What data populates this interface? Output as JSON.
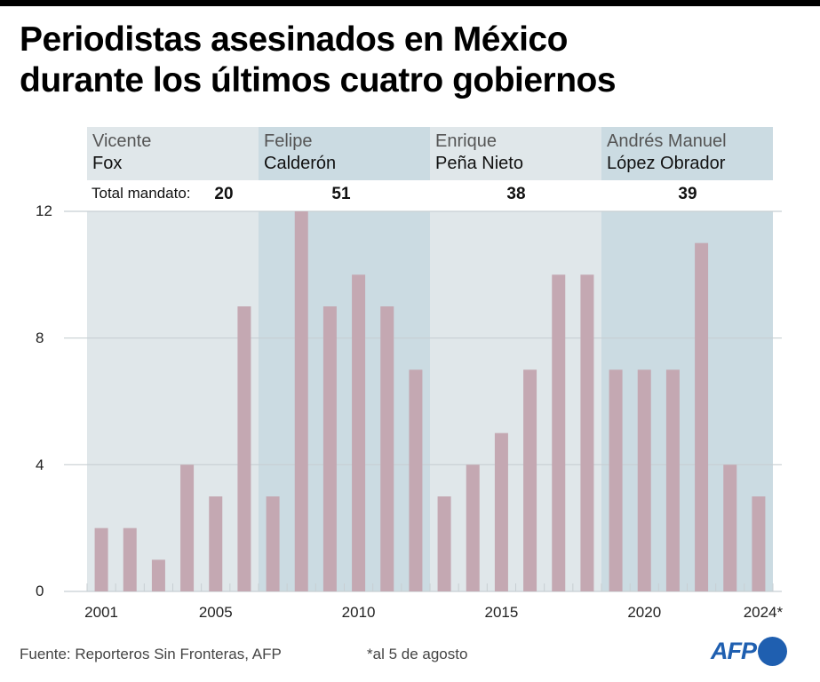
{
  "title_line1": "Periodistas asesinados en México",
  "title_line2": "durante los últimos cuatro gobiernos",
  "governments": [
    {
      "first": "Vicente",
      "last": "Fox",
      "total": "20",
      "start_year": 2001,
      "end_year": 2006
    },
    {
      "first": "Felipe",
      "last": "Calderón",
      "total": "51",
      "start_year": 2007,
      "end_year": 2012
    },
    {
      "first": "Enrique",
      "last": "Peña Nieto",
      "total": "38",
      "start_year": 2013,
      "end_year": 2018
    },
    {
      "first": "Andrés Manuel",
      "last": "López Obrador",
      "total": "39",
      "start_year": 2019,
      "end_year": 2024
    }
  ],
  "total_label": "Total mandato:",
  "colors": {
    "bar": "#c4a8b2",
    "band_light": "#e0e7ea",
    "band_dark": "#cbdbe2",
    "grid": "#c8cfd3",
    "afp_blue": "#1f5fb0"
  },
  "footer": {
    "source": "Fuente: Reporteros Sin Fronteras, AFP",
    "note": "*al 5 de agosto",
    "logo": "AFP"
  },
  "chart_data": {
    "type": "bar",
    "title": "Periodistas asesinados en México durante los últimos cuatro gobiernos",
    "xlabel": "",
    "ylabel": "",
    "x": [
      2001,
      2002,
      2003,
      2004,
      2005,
      2006,
      2007,
      2008,
      2009,
      2010,
      2011,
      2012,
      2013,
      2014,
      2015,
      2016,
      2017,
      2018,
      2019,
      2020,
      2021,
      2022,
      2023,
      2024
    ],
    "values": [
      2,
      2,
      1,
      4,
      3,
      9,
      3,
      12,
      9,
      10,
      9,
      7,
      3,
      4,
      5,
      7,
      10,
      10,
      7,
      7,
      7,
      11,
      4,
      3
    ],
    "ylim": [
      0,
      12
    ],
    "yticks": [
      "0",
      "4",
      "8",
      "12"
    ],
    "ytick_values": [
      0,
      4,
      8,
      12
    ],
    "xtick_labels": [
      {
        "year": 2001,
        "label": "2001"
      },
      {
        "year": 2005,
        "label": "2005"
      },
      {
        "year": 2010,
        "label": "2010"
      },
      {
        "year": 2015,
        "label": "2015"
      },
      {
        "year": 2020,
        "label": "2020"
      },
      {
        "year": 2024,
        "label": "2024*"
      }
    ],
    "grid": true
  }
}
